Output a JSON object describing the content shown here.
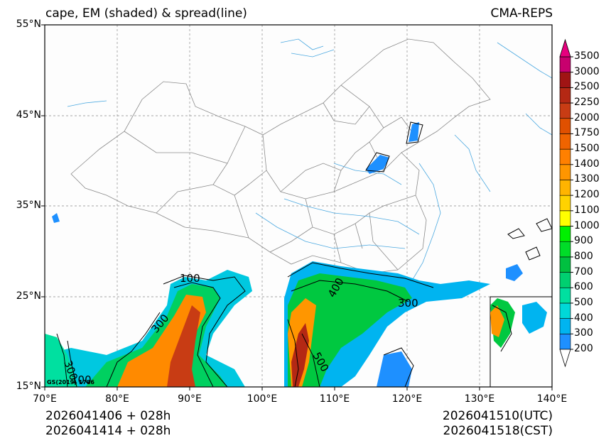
{
  "title_left": "cape, EM (shaded) & spread(line)",
  "title_right": "CMA-REPS",
  "lat_labels": [
    "55°N",
    "45°N",
    "35°N",
    "25°N",
    "15°N"
  ],
  "lon_labels": [
    "70°E",
    "80°E",
    "90°E",
    "100°E",
    "110°E",
    "120°E",
    "130°E",
    "140°E"
  ],
  "colorbar": {
    "levels": [
      "200",
      "300",
      "400",
      "500",
      "600",
      "700",
      "800",
      "900",
      "1000",
      "1100",
      "1200",
      "1300",
      "1400",
      "1500",
      "1750",
      "2000",
      "2250",
      "2500",
      "3000",
      "3500"
    ],
    "colors": [
      "#ffffff",
      "#1e90ff",
      "#00b4f0",
      "#00d8d8",
      "#00e0a0",
      "#00d070",
      "#00c040",
      "#00dc28",
      "#00f000",
      "#ffff00",
      "#ffd200",
      "#ffb400",
      "#ff9600",
      "#ff8000",
      "#f06400",
      "#e05000",
      "#c83c14",
      "#b42814",
      "#a01414",
      "#c8006e",
      "#e6007e"
    ]
  },
  "contour_labels": [
    "100",
    "300",
    "300",
    "400",
    "500",
    "300",
    "100"
  ],
  "footer": {
    "init_utc": "2026041406  +  028h",
    "init_cst": "2026041414  +  028h",
    "valid_utc": "2026041510(UTC)",
    "valid_cst": "2026041518(CST)"
  },
  "watermark": "GS(2019) 1786"
}
